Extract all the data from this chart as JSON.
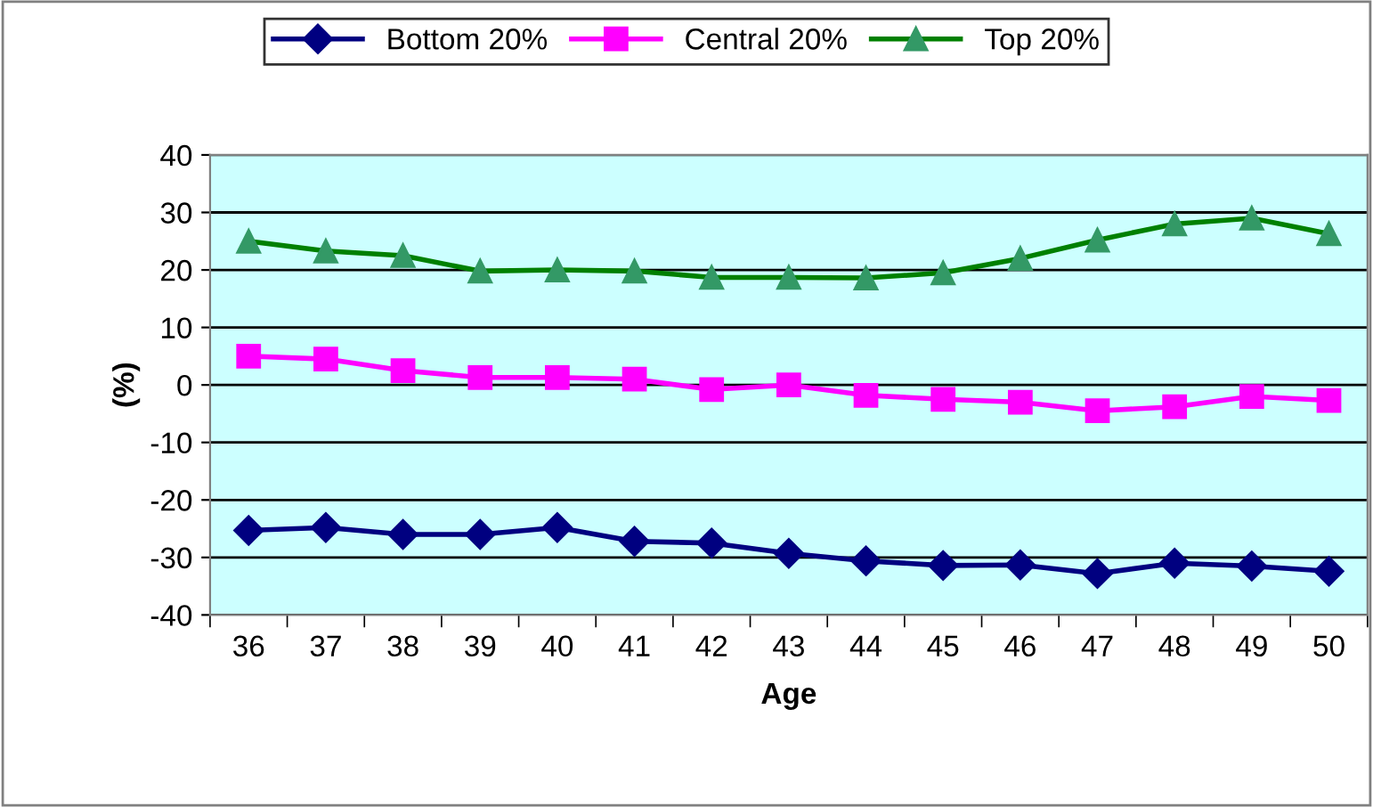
{
  "chart_data": {
    "type": "line",
    "xlabel": "Age",
    "ylabel": "(%)",
    "categories": [
      "36",
      "37",
      "38",
      "39",
      "40",
      "41",
      "42",
      "43",
      "44",
      "45",
      "46",
      "47",
      "48",
      "49",
      "50"
    ],
    "series": [
      {
        "name": "Bottom 20%",
        "color": "#000080",
        "marker": "diamond",
        "values": [
          -25.3,
          -24.8,
          -26,
          -26,
          -24.8,
          -27.2,
          -27.5,
          -29.3,
          -30.6,
          -31.4,
          -31.3,
          -32.8,
          -31,
          -31.5,
          -32.4
        ]
      },
      {
        "name": "Central 20%",
        "color": "#ff00ff",
        "marker": "square",
        "values": [
          5,
          4.5,
          2.5,
          1.3,
          1.3,
          1,
          -0.8,
          0,
          -1.8,
          -2.5,
          -3,
          -4.5,
          -3.8,
          -2,
          -2.7
        ]
      },
      {
        "name": "Top 20%",
        "color": "#008000",
        "marker": "triangle",
        "values": [
          25,
          23.3,
          22.5,
          19.8,
          20,
          19.8,
          18.7,
          18.7,
          18.6,
          19.5,
          22,
          25.2,
          28,
          29,
          26.3
        ]
      }
    ],
    "ylim": [
      -40,
      40
    ],
    "yticks": [
      -40,
      -30,
      -20,
      -10,
      0,
      10,
      20,
      30,
      40
    ],
    "grid": "y",
    "legend": "top",
    "line_style": "solid"
  }
}
